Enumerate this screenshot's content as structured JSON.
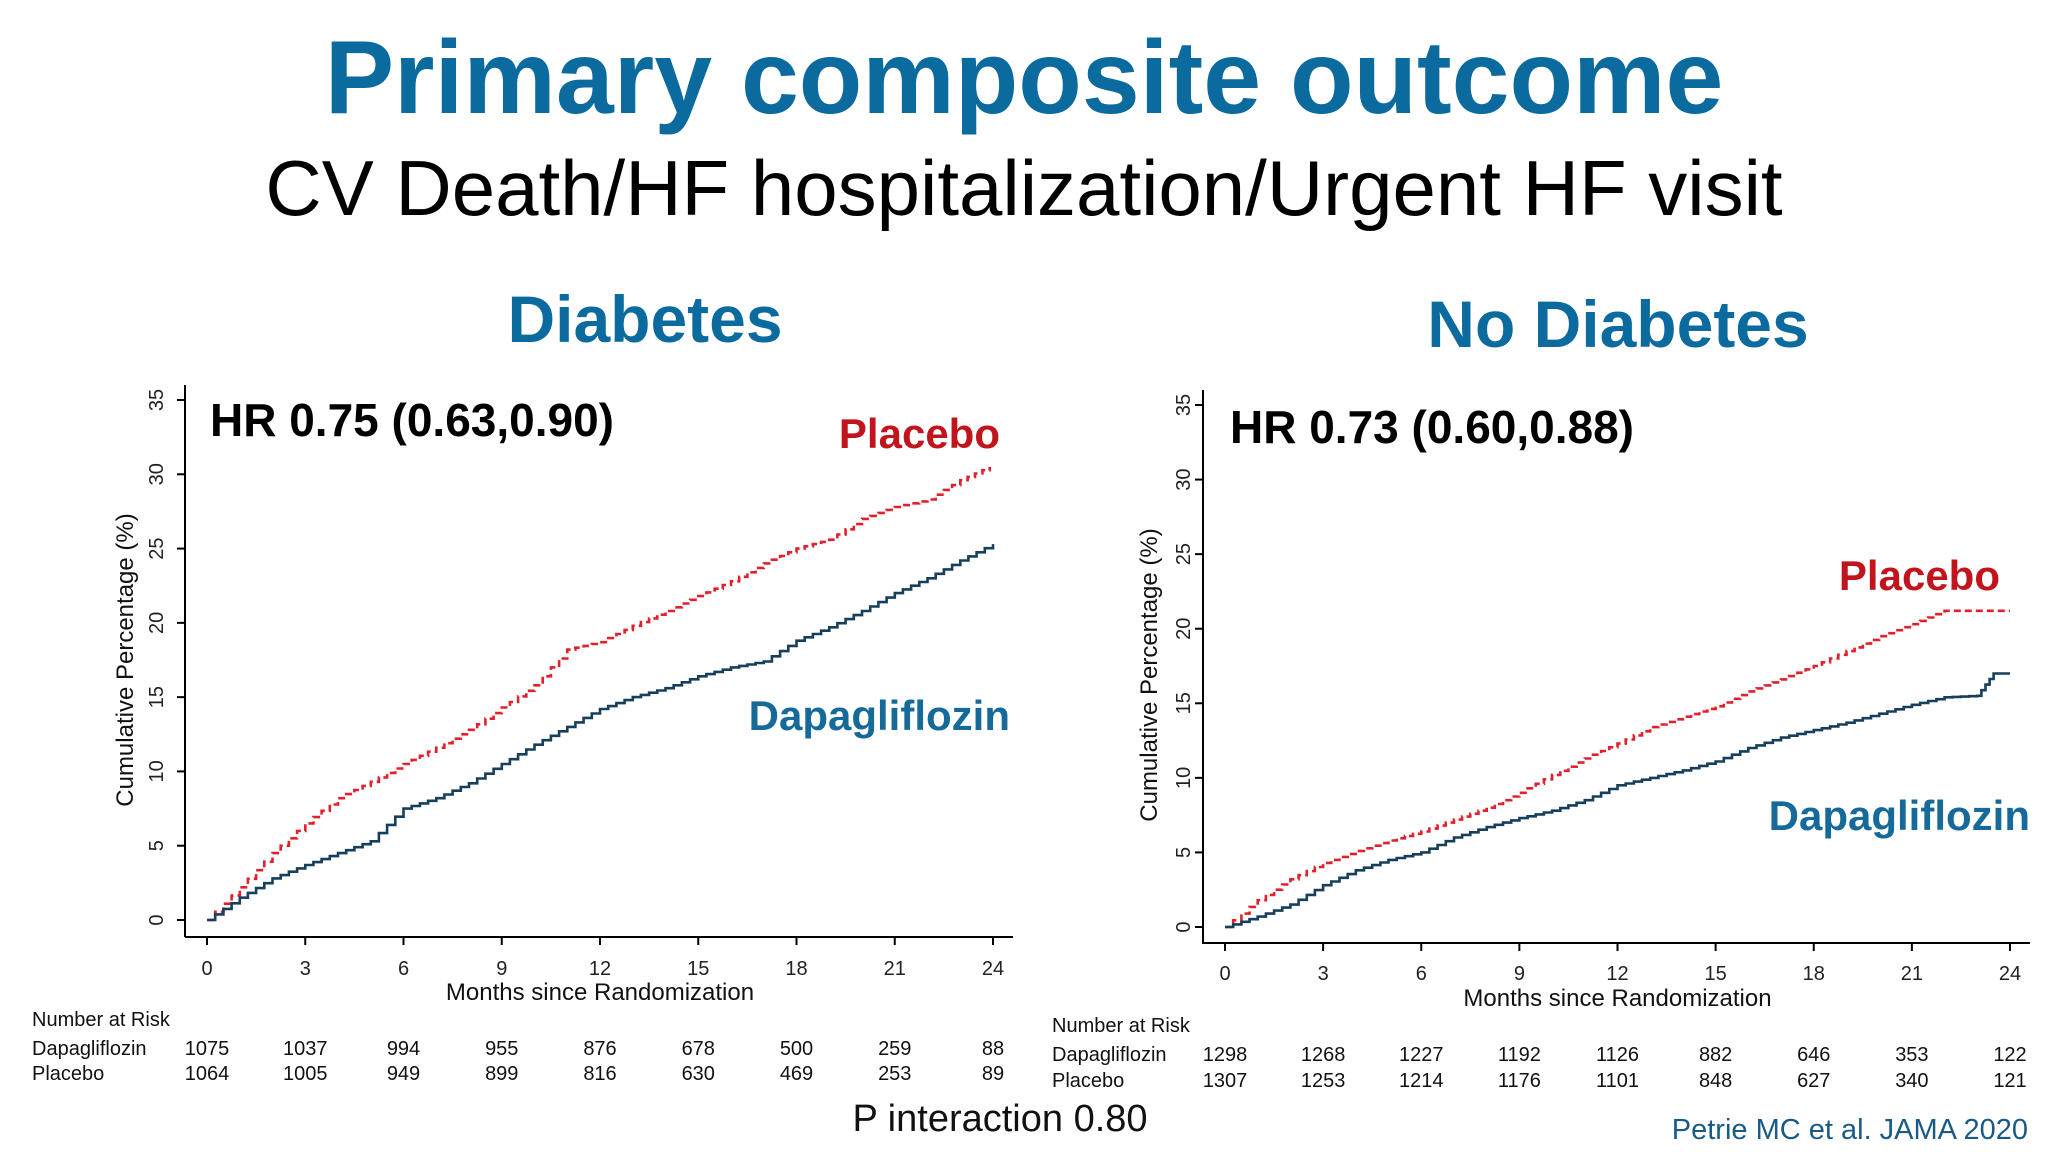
{
  "header": {
    "title": "Primary composite outcome",
    "subtitle": "CV Death/HF hospitalization/Urgent HF visit"
  },
  "footer": {
    "p_interaction": "P interaction 0.80",
    "citation": "Petrie MC et al. JAMA 2020"
  },
  "colors": {
    "title": "#0b6a9e",
    "placebo": "#e0212b",
    "placebo_label": "#c2141d",
    "dapagliflozin": "#163f5c",
    "dapagliflozin_label": "#166a9a"
  },
  "chart_data": [
    {
      "type": "line",
      "title": "Diabetes",
      "annotation": "HR 0.75 (0.63,0.90)",
      "xlabel": "Months since Randomization",
      "ylabel": "Cumulative Percentage (%)",
      "xlim": [
        0,
        24
      ],
      "ylim": [
        0,
        35
      ],
      "xticks": [
        0,
        3,
        6,
        9,
        12,
        15,
        18,
        21,
        24
      ],
      "yticks": [
        0,
        5,
        10,
        15,
        20,
        25,
        30,
        35
      ],
      "series": [
        {
          "name": "Placebo",
          "style": "dashed",
          "x": [
            0,
            1,
            2,
            3,
            4,
            5,
            6,
            7,
            8,
            9,
            10,
            11,
            12,
            13,
            14,
            15,
            16,
            17,
            18,
            19,
            20,
            21,
            22,
            23,
            23.9
          ],
          "y": [
            0,
            2.2,
            4.5,
            6.5,
            8.2,
            9.3,
            10.5,
            11.6,
            12.8,
            14.3,
            15.8,
            18.2,
            18.7,
            19.8,
            20.8,
            21.8,
            22.8,
            24.0,
            25.0,
            25.6,
            27.0,
            27.8,
            28.3,
            29.6,
            30.5
          ]
        },
        {
          "name": "Dapagliflozin",
          "style": "solid",
          "x": [
            0,
            1,
            2,
            3,
            4,
            5,
            6,
            7,
            8,
            9,
            10,
            11,
            12,
            13,
            14,
            15,
            16,
            17,
            18,
            19,
            20,
            21,
            22,
            23,
            24
          ],
          "y": [
            0,
            1.5,
            2.8,
            3.7,
            4.5,
            5.3,
            7.5,
            8.2,
            9.2,
            10.5,
            11.8,
            13.0,
            14.2,
            15.0,
            15.6,
            16.4,
            17.0,
            17.4,
            18.8,
            19.7,
            20.8,
            22.0,
            23.0,
            24.2,
            25.3
          ]
        }
      ],
      "labels": {
        "placebo": "Placebo",
        "dapagliflozin": "Dapagliflozin"
      },
      "risk_table": {
        "heading": "Number at Risk",
        "rows": [
          {
            "name": "Dapagliflozin",
            "values": [
              "1075",
              "1037",
              "994",
              "955",
              "876",
              "678",
              "500",
              "259",
              "88"
            ]
          },
          {
            "name": "Placebo",
            "values": [
              "1064",
              "1005",
              "949",
              "899",
              "816",
              "630",
              "469",
              "253",
              "89"
            ]
          }
        ]
      }
    },
    {
      "type": "line",
      "title": "No Diabetes",
      "annotation": "HR 0.73 (0.60,0.88)",
      "xlabel": "Months since Randomization",
      "ylabel": "Cumulative Percentage (%)",
      "xlim": [
        0,
        24
      ],
      "ylim": [
        0,
        35
      ],
      "xticks": [
        0,
        3,
        6,
        9,
        12,
        15,
        18,
        21,
        24
      ],
      "yticks": [
        0,
        5,
        10,
        15,
        20,
        25,
        30,
        35
      ],
      "series": [
        {
          "name": "Placebo",
          "style": "dashed",
          "x": [
            0,
            1,
            2,
            3,
            4,
            5,
            6,
            7,
            8,
            9,
            10,
            11,
            12,
            13,
            14,
            15,
            16,
            17,
            18,
            19,
            20,
            21,
            22,
            23,
            24
          ],
          "y": [
            0,
            1.8,
            3.2,
            4.3,
            5.1,
            5.8,
            6.4,
            7.2,
            8.0,
            9.0,
            10.2,
            11.3,
            12.3,
            13.4,
            14.1,
            14.8,
            15.8,
            16.6,
            17.5,
            18.5,
            19.5,
            20.3,
            21.2,
            21.2,
            21.2
          ]
        },
        {
          "name": "Dapagliflozin",
          "style": "solid",
          "x": [
            0,
            1,
            2,
            3,
            4,
            5,
            6,
            7,
            8,
            9,
            10,
            11,
            12,
            13,
            14,
            15,
            16,
            17,
            18,
            19,
            20,
            21,
            22,
            23,
            23.5,
            24
          ],
          "y": [
            0,
            0.7,
            1.5,
            2.8,
            3.8,
            4.5,
            5.0,
            6.0,
            6.7,
            7.3,
            7.8,
            8.5,
            9.5,
            10.0,
            10.5,
            11.1,
            12.0,
            12.7,
            13.2,
            13.7,
            14.3,
            14.9,
            15.4,
            15.5,
            17.0,
            17.0
          ]
        }
      ],
      "labels": {
        "placebo": "Placebo",
        "dapagliflozin": "Dapagliflozin"
      },
      "risk_table": {
        "heading": "Number at Risk",
        "rows": [
          {
            "name": "Dapagliflozin",
            "values": [
              "1298",
              "1268",
              "1227",
              "1192",
              "1126",
              "882",
              "646",
              "353",
              "122"
            ]
          },
          {
            "name": "Placebo",
            "values": [
              "1307",
              "1253",
              "1214",
              "1176",
              "1101",
              "848",
              "627",
              "340",
              "121"
            ]
          }
        ]
      }
    }
  ]
}
